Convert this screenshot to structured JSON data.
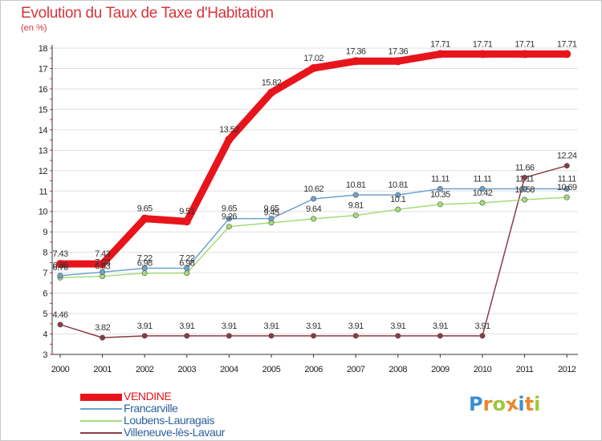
{
  "title": "Evolution du Taux de Taxe d'Habitation",
  "unit": "(en %)",
  "logo": {
    "letters": [
      "P",
      "r",
      "o",
      "x",
      "i",
      "t",
      "i"
    ],
    "colors": [
      "#3a8fd6",
      "#e8892a",
      "#9cc83a",
      "#e8892a",
      "#3a8fd6",
      "#e8892a",
      "#9cc83a"
    ]
  },
  "colors": {
    "title": "#d8343c",
    "axis": "#333333",
    "grid": "#e0e0e0",
    "tick_marks": "#d8343c"
  },
  "chart_data": {
    "type": "line",
    "title": "Evolution du Taux de Taxe d'Habitation",
    "ylabel": "(en %)",
    "xlabel": "",
    "x": [
      "2000",
      "2001",
      "2002",
      "2003",
      "2004",
      "2005",
      "2006",
      "2007",
      "2008",
      "2009",
      "2010",
      "2011",
      "2012"
    ],
    "ylim": [
      3,
      18
    ],
    "yticks": [
      "3",
      "4",
      "5",
      "6",
      "7",
      "8",
      "9",
      "10",
      "11",
      "12",
      "13",
      "14",
      "15",
      "16",
      "17",
      "18"
    ],
    "grid": true,
    "legend_position": "bottom-left",
    "series": [
      {
        "name": "VENDINE",
        "color": "#e8141c",
        "values": [
          7.43,
          7.43,
          9.65,
          9.51,
          13.52,
          15.82,
          17.02,
          17.36,
          17.36,
          17.71,
          17.71,
          17.71,
          17.71
        ],
        "labels": [
          "7.43",
          "7.43",
          "9.65",
          "9.51",
          "13.52",
          "15.82",
          "17.02",
          "17.36",
          "17.36",
          "17.71",
          "17.71",
          "17.71",
          "17.71"
        ],
        "label_pos": [
          "above",
          "above",
          "above",
          "above",
          "above",
          "above",
          "above",
          "above",
          "above",
          "above",
          "above",
          "above",
          "above"
        ]
      },
      {
        "name": "Francarville",
        "color": "#6da2cf",
        "values": [
          6.86,
          7.03,
          7.22,
          7.22,
          9.65,
          9.65,
          10.62,
          10.81,
          10.81,
          11.11,
          11.11,
          11.11,
          11.11
        ],
        "labels": [
          "6.86",
          "7.03",
          "7.22",
          "7.22",
          "9.65",
          "9.65",
          "10.62",
          "10.81",
          "10.81",
          "11.11",
          "11.11",
          "11.11",
          "11.11"
        ],
        "label_pos": [
          "above",
          "above",
          "above",
          "above",
          "above",
          "above",
          "above",
          "above",
          "above",
          "above",
          "above",
          "above",
          "above"
        ]
      },
      {
        "name": "Loubens-Lauragais",
        "color": "#a4dc78",
        "values": [
          6.76,
          6.83,
          6.98,
          6.98,
          9.26,
          9.45,
          9.64,
          9.81,
          10.1,
          10.35,
          10.42,
          10.58,
          10.69
        ],
        "labels": [
          "6.76",
          "6.83",
          "6.98",
          "6.98",
          "9.26",
          "9.45",
          "9.64",
          "9.81",
          "10.1",
          "10.35",
          "10.42",
          "10.58",
          "10.69"
        ],
        "label_pos": [
          "above",
          "above",
          "above",
          "above",
          "above",
          "above",
          "above",
          "above",
          "above",
          "above",
          "above",
          "above",
          "above"
        ]
      },
      {
        "name": "Villeneuve-lès-Lavaur",
        "color": "#8b3a46",
        "values": [
          4.46,
          3.82,
          3.91,
          3.91,
          3.91,
          3.91,
          3.91,
          3.91,
          3.91,
          3.91,
          3.91,
          11.66,
          12.24
        ],
        "labels": [
          "4.46",
          "3.82",
          "3.91",
          "3.91",
          "3.91",
          "3.91",
          "3.91",
          "3.91",
          "3.91",
          "3.91",
          "3.91",
          "11.66",
          "12.24"
        ],
        "label_pos": [
          "above",
          "above",
          "above",
          "above",
          "above",
          "above",
          "above",
          "above",
          "above",
          "above",
          "above",
          "above",
          "above"
        ]
      }
    ]
  }
}
